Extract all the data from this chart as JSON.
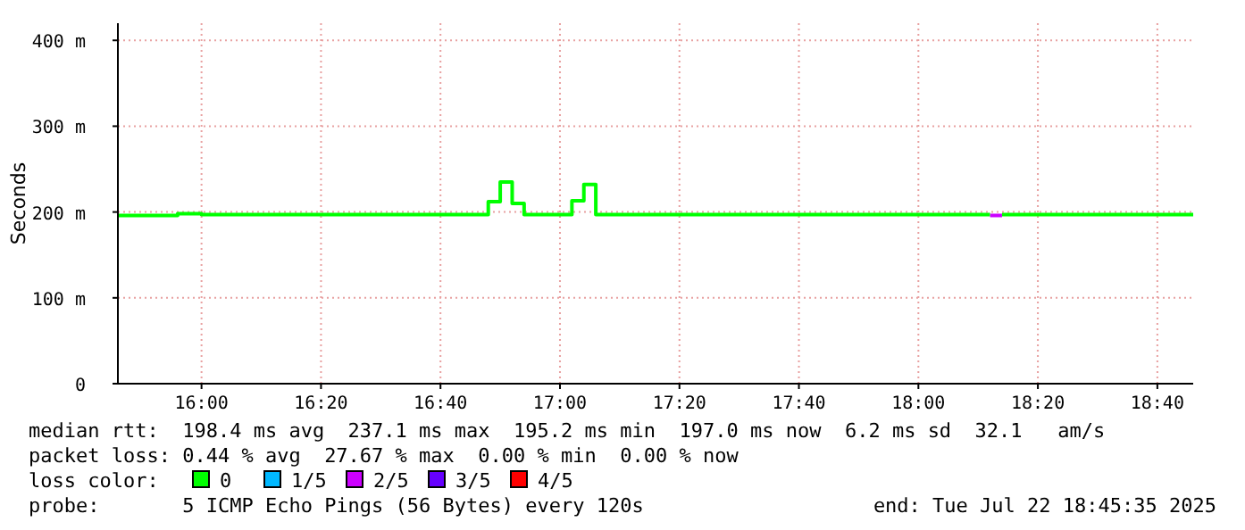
{
  "chart_data": {
    "type": "step",
    "ylabel": "Seconds",
    "legend_title": "loss color:",
    "legend": "bottom",
    "grid": true,
    "line_style": "solid",
    "marker": "none",
    "xlim": [
      "2025-07-22T15:46",
      "2025-07-22T18:46"
    ],
    "xticks": [
      {
        "value": "2025-07-22T16:00",
        "label": "16:00"
      },
      {
        "value": "2025-07-22T16:20",
        "label": "16:20"
      },
      {
        "value": "2025-07-22T16:40",
        "label": "16:40"
      },
      {
        "value": "2025-07-22T17:00",
        "label": "17:00"
      },
      {
        "value": "2025-07-22T17:20",
        "label": "17:20"
      },
      {
        "value": "2025-07-22T17:40",
        "label": "17:40"
      },
      {
        "value": "2025-07-22T18:00",
        "label": "18:00"
      },
      {
        "value": "2025-07-22T18:20",
        "label": "18:20"
      },
      {
        "value": "2025-07-22T18:40",
        "label": "18:40"
      }
    ],
    "ylim": [
      0,
      420
    ],
    "yticks": [
      {
        "value": 0,
        "label": "0"
      },
      {
        "value": 100,
        "label": "100 m"
      },
      {
        "value": 200,
        "label": "200 m"
      },
      {
        "value": 300,
        "label": "300 m"
      },
      {
        "value": 400,
        "label": "400 m"
      }
    ],
    "series": [
      {
        "name": "0",
        "color": "#00ff00",
        "x": [
          "2025-07-22T15:46",
          "2025-07-22T15:56",
          "2025-07-22T16:00",
          "2025-07-22T16:48",
          "2025-07-22T16:50",
          "2025-07-22T16:52",
          "2025-07-22T16:54",
          "2025-07-22T17:02",
          "2025-07-22T17:04",
          "2025-07-22T17:06",
          "2025-07-22T18:12",
          "2025-07-22T18:13",
          "2025-07-22T18:14",
          "2025-07-22T18:46"
        ],
        "values": [
          196,
          198,
          197,
          212,
          235,
          210,
          197,
          213,
          232,
          197,
          197,
          null,
          197,
          197
        ]
      },
      {
        "name": "1/5",
        "color": "#00b8ff"
      },
      {
        "name": "2/5",
        "color": "#cc00ff",
        "x": [
          "2025-07-22T18:12",
          "2025-07-22T18:14"
        ],
        "values": [
          196,
          196
        ]
      },
      {
        "name": "3/5",
        "color": "#6600ff"
      },
      {
        "name": "4/5",
        "color": "#ff0000"
      }
    ],
    "annotations": [
      "median rtt:  198.4 ms avg  237.1 ms max  195.2 ms min  197.0 ms now  6.2 ms sd  32.1   am/s",
      "packet loss: 0.44 % avg  27.67 % max  0.00 % min  0.00 % now",
      "probe:       5 ICMP Echo Pings (56 Bytes) every 120s",
      "end: Tue Jul 22 18:45:35 2025"
    ]
  }
}
